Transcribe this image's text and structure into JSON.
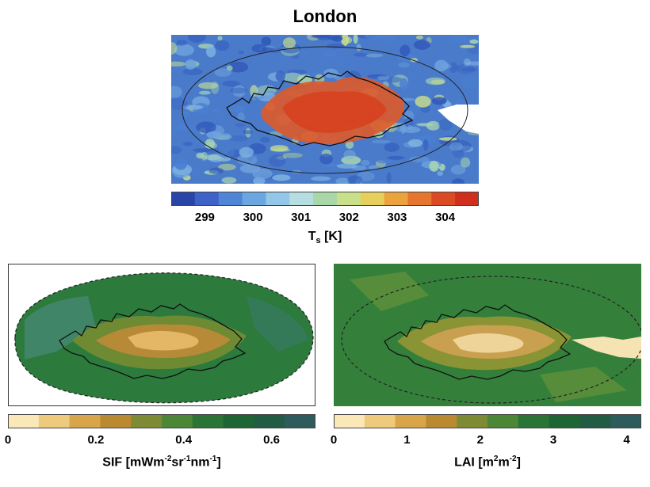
{
  "figure": {
    "title": "London",
    "panels": [
      {
        "id": "ts",
        "colorbar": {
          "label_main": "T",
          "label_sub": "s",
          "label_rest": " [K]",
          "ticks": [
            "299",
            "300",
            "301",
            "302",
            "303",
            "304"
          ],
          "range": [
            298.3,
            304.7
          ],
          "colors": [
            "#2a45a8",
            "#3d63c8",
            "#4f85d6",
            "#6aa6df",
            "#92c7e8",
            "#b6dde0",
            "#a9d7a7",
            "#c9e08b",
            "#e6cf5b",
            "#eba33d",
            "#e6762f",
            "#da4b24",
            "#cf2f1c"
          ]
        }
      },
      {
        "id": "sif",
        "colorbar": {
          "label_parts": [
            "SIF [mWm",
            "-2",
            "sr",
            "-1",
            "nm",
            "-1",
            "]"
          ],
          "ticks": [
            "0",
            "0.2",
            "0.4",
            "0.6"
          ],
          "range": [
            0,
            0.7
          ],
          "colors": [
            "#fbe8b8",
            "#eeca7c",
            "#d9a54a",
            "#b98a32",
            "#7f8a34",
            "#4c8637",
            "#2b7436",
            "#1e6534",
            "#225c44",
            "#2e5c5c"
          ]
        }
      },
      {
        "id": "lai",
        "colorbar": {
          "label_parts": [
            "LAI [m",
            "2",
            "m",
            "-2",
            "]"
          ],
          "ticks": [
            "0",
            "1",
            "2",
            "3",
            "4"
          ],
          "range": [
            0,
            4.2
          ],
          "colors": [
            "#fbe8b8",
            "#eeca7c",
            "#d9a54a",
            "#b98a32",
            "#7f8a34",
            "#4c8637",
            "#2b7436",
            "#1e6534",
            "#225c44",
            "#2e5c5c"
          ]
        }
      }
    ]
  }
}
